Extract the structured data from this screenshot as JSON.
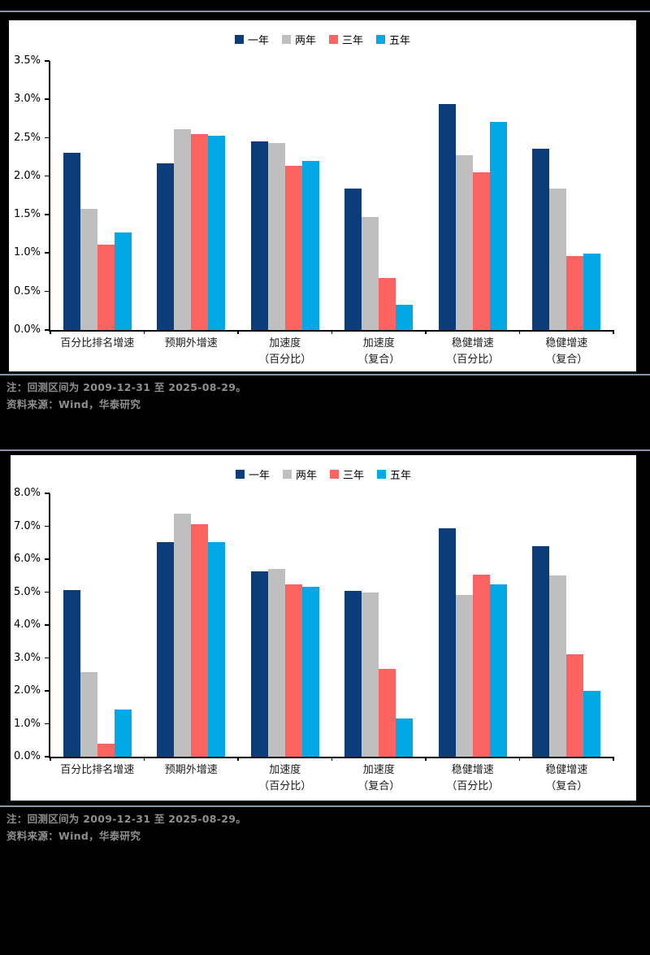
{
  "colors": {
    "background": "#000000",
    "panel": "#ffffff",
    "rule": "#8796ad",
    "axis": "#000000",
    "note_text": "#8f8f8f",
    "series_navy": "#0b3d7b",
    "series_gray": "#bfbfbf",
    "series_red": "#fb6460",
    "series_cyan": "#00a9e5"
  },
  "legend": {
    "items": [
      "一年",
      "两年",
      "三年",
      "五年"
    ]
  },
  "sections": [
    {
      "note_line1": "注：回测区间为 2009-12-31 至 2025-08-29。",
      "note_line2": "资料来源：Wind，华泰研究"
    },
    {
      "note_line1": "注：回测区间为 2009-12-31 至 2025-08-29。",
      "note_line2": "资料来源：Wind，华泰研究"
    }
  ],
  "chart_data": [
    {
      "type": "bar",
      "title": "",
      "xlabel": "",
      "ylabel": "",
      "grid": false,
      "legend_position": "top-center",
      "categories": [
        "百分比排名增速",
        "预期外增速",
        "加速度（百分比）",
        "加速度（复合）",
        "稳健增速（百分比）",
        "稳健增速（复合）"
      ],
      "categories_lines": [
        [
          "百分比排名增速"
        ],
        [
          "预期外增速"
        ],
        [
          "加速度",
          "（百分比）"
        ],
        [
          "加速度",
          "（复合）"
        ],
        [
          "稳健增速",
          "（百分比）"
        ],
        [
          "稳健增速",
          "（复合）"
        ]
      ],
      "series": [
        {
          "name": "一年",
          "color": "#0b3d7b",
          "values": [
            2.3,
            2.17,
            2.45,
            1.84,
            2.94,
            2.36
          ]
        },
        {
          "name": "两年",
          "color": "#bfbfbf",
          "values": [
            1.58,
            2.61,
            2.43,
            1.47,
            2.27,
            1.84
          ]
        },
        {
          "name": "三年",
          "color": "#fb6460",
          "values": [
            1.11,
            2.55,
            2.14,
            0.68,
            2.05,
            0.96
          ]
        },
        {
          "name": "五年",
          "color": "#00a9e5",
          "values": [
            1.27,
            2.53,
            2.2,
            0.33,
            2.71,
            0.99
          ]
        }
      ],
      "ylim": [
        0,
        3.5
      ],
      "ytick_step": 0.5,
      "ytick_labels": [
        "0.0%",
        "0.5%",
        "1.0%",
        "1.5%",
        "2.0%",
        "2.5%",
        "3.0%",
        "3.5%"
      ]
    },
    {
      "type": "bar",
      "title": "",
      "xlabel": "",
      "ylabel": "",
      "grid": false,
      "legend_position": "top-center",
      "categories": [
        "百分比排名增速",
        "预期外增速",
        "加速度（百分比）",
        "加速度（复合）",
        "稳健增速（百分比）",
        "稳健增速（复合）"
      ],
      "categories_lines": [
        [
          "百分比排名增速"
        ],
        [
          "预期外增速"
        ],
        [
          "加速度",
          "（百分比）"
        ],
        [
          "加速度",
          "（复合）"
        ],
        [
          "稳健增速",
          "（百分比）"
        ],
        [
          "稳健增速",
          "（复合）"
        ]
      ],
      "series": [
        {
          "name": "一年",
          "color": "#0b3d7b",
          "values": [
            5.07,
            6.51,
            5.62,
            5.04,
            6.93,
            6.4
          ]
        },
        {
          "name": "两年",
          "color": "#bfbfbf",
          "values": [
            2.57,
            7.39,
            5.71,
            5.0,
            4.92,
            5.5
          ]
        },
        {
          "name": "三年",
          "color": "#fb6460",
          "values": [
            0.4,
            7.07,
            5.24,
            2.67,
            5.53,
            3.12
          ]
        },
        {
          "name": "五年",
          "color": "#00a9e5",
          "values": [
            1.42,
            6.53,
            5.16,
            1.17,
            5.24,
            2.01
          ]
        }
      ],
      "ylim": [
        0,
        8.0
      ],
      "ytick_step": 1.0,
      "ytick_labels": [
        "0.0%",
        "1.0%",
        "2.0%",
        "3.0%",
        "4.0%",
        "5.0%",
        "6.0%",
        "7.0%",
        "8.0%"
      ]
    }
  ]
}
